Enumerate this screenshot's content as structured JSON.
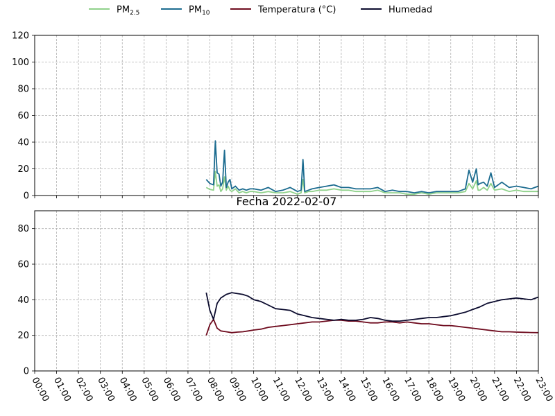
{
  "colors": {
    "pm25": "#8fd18a",
    "pm10": "#1b6b8f",
    "temperatura": "#6e0b1e",
    "humedad": "#0b0b2e",
    "grid": "#b0b0b0"
  },
  "legend": {
    "placement": "top-center",
    "items": [
      {
        "key": "pm25",
        "main": "PM",
        "sub": "2.5"
      },
      {
        "key": "pm10",
        "main": "PM",
        "sub": "10"
      },
      {
        "key": "temperatura",
        "main": "Temperatura (°C)",
        "sub": ""
      },
      {
        "key": "humedad",
        "main": "Humedad",
        "sub": ""
      }
    ]
  },
  "chart_data": [
    {
      "type": "line",
      "title": "",
      "xlabel": "",
      "ylabel": "",
      "xlim": [
        "00:00",
        "23:00"
      ],
      "ylim": [
        0,
        120
      ],
      "yticks": [
        0,
        20,
        40,
        60,
        80,
        100,
        120
      ],
      "grid": true,
      "series": [
        {
          "key": "pm25",
          "name": "PM2.5",
          "x": [
            "07:50",
            "08:00",
            "08:10",
            "08:15",
            "08:20",
            "08:25",
            "08:30",
            "08:35",
            "08:40",
            "08:45",
            "08:50",
            "08:55",
            "09:00",
            "09:10",
            "09:20",
            "09:30",
            "09:40",
            "09:50",
            "10:00",
            "10:20",
            "10:40",
            "11:00",
            "11:20",
            "11:40",
            "12:00",
            "12:10",
            "12:15",
            "12:20",
            "12:30",
            "12:40",
            "13:00",
            "13:20",
            "13:40",
            "14:00",
            "14:20",
            "14:40",
            "15:00",
            "15:20",
            "15:40",
            "16:00",
            "16:20",
            "16:40",
            "17:00",
            "17:20",
            "17:40",
            "18:00",
            "18:20",
            "18:40",
            "19:00",
            "19:20",
            "19:40",
            "19:50",
            "20:00",
            "20:10",
            "20:15",
            "20:20",
            "20:30",
            "20:40",
            "20:50",
            "21:00",
            "21:20",
            "21:40",
            "22:00",
            "22:20",
            "22:40",
            "23:00"
          ],
          "y": [
            6,
            4.5,
            4,
            18,
            7,
            8,
            3,
            5,
            14,
            4,
            7,
            4,
            3,
            5,
            2,
            3,
            2,
            3,
            3,
            2,
            3,
            2,
            2,
            3,
            1,
            2,
            12,
            2,
            3,
            3,
            4,
            4,
            5,
            4,
            4,
            3,
            3,
            3,
            4,
            2,
            2,
            2,
            1,
            1,
            2,
            1,
            2,
            2,
            2,
            2,
            3,
            9,
            5,
            11,
            4,
            4,
            6,
            4,
            9,
            4,
            5,
            3,
            4,
            3,
            3,
            3
          ]
        },
        {
          "key": "pm10",
          "name": "PM10",
          "x": [
            "07:50",
            "08:00",
            "08:10",
            "08:15",
            "08:20",
            "08:25",
            "08:30",
            "08:35",
            "08:40",
            "08:45",
            "08:50",
            "08:55",
            "09:00",
            "09:10",
            "09:20",
            "09:30",
            "09:40",
            "09:50",
            "10:00",
            "10:20",
            "10:40",
            "11:00",
            "11:20",
            "11:40",
            "12:00",
            "12:10",
            "12:15",
            "12:20",
            "12:30",
            "12:40",
            "13:00",
            "13:20",
            "13:40",
            "14:00",
            "14:20",
            "14:40",
            "15:00",
            "15:20",
            "15:40",
            "16:00",
            "16:20",
            "16:40",
            "17:00",
            "17:20",
            "17:40",
            "18:00",
            "18:20",
            "18:40",
            "19:00",
            "19:20",
            "19:40",
            "19:50",
            "20:00",
            "20:10",
            "20:15",
            "20:20",
            "20:30",
            "20:40",
            "20:50",
            "21:00",
            "21:20",
            "21:40",
            "22:00",
            "22:20",
            "22:40",
            "23:00"
          ],
          "y": [
            12,
            9,
            8,
            41,
            17,
            16,
            7,
            10,
            34,
            6,
            10,
            12,
            5,
            7,
            4,
            5,
            4,
            5,
            5,
            4,
            6,
            3,
            4,
            6,
            3,
            4,
            27,
            3,
            4,
            5,
            6,
            7,
            8,
            6,
            6,
            5,
            5,
            5,
            6,
            3,
            4,
            3,
            3,
            2,
            3,
            2,
            3,
            3,
            3,
            3,
            5,
            19,
            10,
            20,
            8,
            9,
            10,
            7,
            17,
            6,
            10,
            6,
            7,
            6,
            5,
            7
          ]
        }
      ]
    },
    {
      "type": "line",
      "title": "Fecha 2022-02-07",
      "xlabel": "",
      "ylabel": "",
      "xlim": [
        "00:00",
        "23:00"
      ],
      "ylim": [
        0,
        90
      ],
      "yticks": [
        0,
        20,
        40,
        60,
        80
      ],
      "xticks": [
        "00:00",
        "01:00",
        "02:00",
        "03:00",
        "04:00",
        "05:00",
        "06:00",
        "07:00",
        "08:00",
        "09:00",
        "10:00",
        "11:00",
        "12:00",
        "13:00",
        "14:00",
        "15:00",
        "16:00",
        "17:00",
        "18:00",
        "19:00",
        "20:00",
        "21:00",
        "22:00",
        "23:00"
      ],
      "grid": true,
      "series": [
        {
          "key": "temperatura",
          "name": "Temperatura (°C)",
          "x": [
            "07:50",
            "08:00",
            "08:10",
            "08:20",
            "08:30",
            "08:45",
            "09:00",
            "09:15",
            "09:30",
            "09:45",
            "10:00",
            "10:20",
            "10:40",
            "11:00",
            "11:20",
            "11:40",
            "12:00",
            "12:20",
            "12:40",
            "13:00",
            "13:20",
            "13:40",
            "14:00",
            "14:20",
            "14:40",
            "15:00",
            "15:20",
            "15:40",
            "16:00",
            "16:20",
            "16:40",
            "17:00",
            "17:20",
            "17:40",
            "18:00",
            "18:20",
            "18:40",
            "19:00",
            "19:20",
            "19:40",
            "20:00",
            "20:20",
            "20:40",
            "21:00",
            "21:20",
            "21:40",
            "22:00",
            "22:20",
            "22:40",
            "23:00"
          ],
          "y": [
            20,
            26,
            29,
            24,
            22.5,
            22,
            21.5,
            21.8,
            22,
            22.5,
            23,
            23.5,
            24.5,
            25,
            25.5,
            26,
            26.5,
            27,
            27.5,
            27.5,
            28,
            28.5,
            28.5,
            28,
            28,
            27.5,
            27,
            27,
            27.5,
            27.5,
            27,
            27.5,
            27,
            26.5,
            26.5,
            26,
            25.5,
            25.5,
            25,
            24.5,
            24,
            23.5,
            23,
            22.5,
            22,
            22,
            21.8,
            21.7,
            21.6,
            21.5
          ]
        },
        {
          "key": "humedad",
          "name": "Humedad",
          "x": [
            "07:50",
            "08:00",
            "08:10",
            "08:20",
            "08:30",
            "08:45",
            "09:00",
            "09:15",
            "09:30",
            "09:45",
            "10:00",
            "10:20",
            "10:40",
            "11:00",
            "11:20",
            "11:40",
            "12:00",
            "12:20",
            "12:40",
            "13:00",
            "13:20",
            "13:40",
            "14:00",
            "14:20",
            "14:40",
            "15:00",
            "15:20",
            "15:40",
            "16:00",
            "16:20",
            "16:40",
            "17:00",
            "17:20",
            "17:40",
            "18:00",
            "18:20",
            "18:40",
            "19:00",
            "19:20",
            "19:40",
            "20:00",
            "20:20",
            "20:40",
            "21:00",
            "21:20",
            "21:40",
            "22:00",
            "22:20",
            "22:40",
            "23:00"
          ],
          "y": [
            44,
            34,
            29,
            38,
            41,
            43,
            44,
            43.5,
            43,
            42,
            40,
            39,
            37,
            35,
            34.5,
            34,
            32,
            31,
            30,
            29.5,
            29,
            28.5,
            29,
            28.5,
            28.5,
            29,
            30,
            29.5,
            28.5,
            28,
            28,
            28.5,
            29,
            29.5,
            30,
            30,
            30.5,
            31,
            32,
            33,
            34.5,
            36,
            38,
            39,
            40,
            40.5,
            41,
            40.5,
            40,
            41.5
          ]
        }
      ]
    }
  ]
}
